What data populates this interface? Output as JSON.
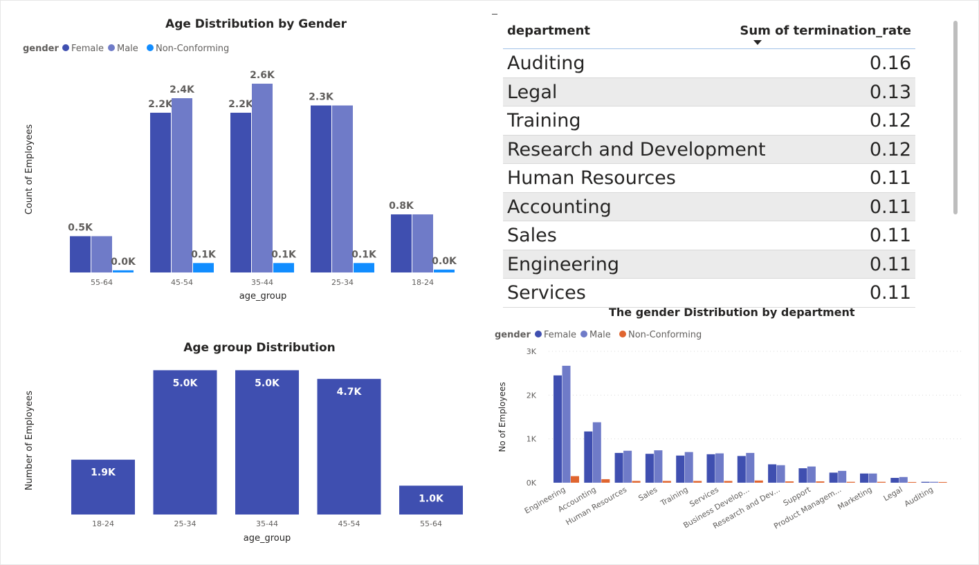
{
  "charts": [
    {
      "title": "Age Distribution by Gender",
      "legend_title": "gender",
      "xlabel": "age_group",
      "ylabel": "Count of Employees"
    },
    {
      "title": "Age group Distribution",
      "xlabel": "age_group",
      "ylabel": "Number of Employees"
    },
    {
      "title": "The gender Distribution by department",
      "legend_title": "gender",
      "xlabel": "",
      "ylabel": "No of Employees"
    }
  ],
  "table": {
    "col1_header": "department",
    "col2_header": "Sum of termination_rate",
    "rows": [
      {
        "department": "Auditing",
        "value": "0.16"
      },
      {
        "department": "Legal",
        "value": "0.13"
      },
      {
        "department": "Training",
        "value": "0.12"
      },
      {
        "department": "Research and Development",
        "value": "0.12"
      },
      {
        "department": "Human Resources",
        "value": "0.11"
      },
      {
        "department": "Accounting",
        "value": "0.11"
      },
      {
        "department": "Sales",
        "value": "0.11"
      },
      {
        "department": "Engineering",
        "value": "0.11"
      },
      {
        "department": "Services",
        "value": "0.11"
      }
    ]
  },
  "colors": {
    "female": "#3f4fb0",
    "male": "#6f7bc8",
    "nonconforming_1": "#118dff",
    "nonconforming_2": "#e0652f",
    "text": "#252423",
    "axis_text": "#605e5c"
  },
  "chart_data": [
    {
      "type": "bar",
      "title": "Age Distribution by Gender",
      "xlabel": "age_group",
      "ylabel": "Count of Employees",
      "legend_title": "gender",
      "legend_position": "top-left",
      "categories": [
        "55-64",
        "45-54",
        "35-44",
        "25-34",
        "18-24"
      ],
      "series": [
        {
          "name": "Female",
          "values": [
            500,
            2200,
            2200,
            2300,
            800
          ],
          "labels": [
            "0.5K",
            "2.2K",
            "2.2K",
            "2.3K",
            "0.8K"
          ]
        },
        {
          "name": "Male",
          "values": [
            500,
            2400,
            2600,
            2300,
            800
          ],
          "labels": [
            "",
            "2.4K",
            "2.6K",
            "",
            ""
          ]
        },
        {
          "name": "Non-Conforming",
          "values": [
            30,
            130,
            130,
            130,
            40
          ],
          "labels": [
            "0.0K",
            "0.1K",
            "0.1K",
            "0.1K",
            "0.0K"
          ]
        }
      ],
      "ylim": [
        0,
        2800
      ],
      "grid": false
    },
    {
      "type": "bar",
      "title": "Age group Distribution",
      "xlabel": "age_group",
      "ylabel": "Number of Employees",
      "categories": [
        "18-24",
        "25-34",
        "35-44",
        "45-54",
        "55-64"
      ],
      "values": [
        1900,
        5000,
        5000,
        4700,
        1000
      ],
      "labels": [
        "1.9K",
        "5.0K",
        "5.0K",
        "4.7K",
        "1.0K"
      ],
      "ylim": [
        0,
        5200
      ],
      "grid": false
    },
    {
      "type": "bar",
      "title": "The gender Distribution by department",
      "ylabel": "No of Employees",
      "legend_title": "gender",
      "legend_position": "top-left",
      "categories": [
        "Engineering",
        "Accounting",
        "Human Resources",
        "Sales",
        "Training",
        "Services",
        "Business Develop...",
        "Research and Dev...",
        "Support",
        "Product Managem...",
        "Marketing",
        "Legal",
        "Auditing"
      ],
      "series": [
        {
          "name": "Female",
          "values": [
            2450,
            1170,
            680,
            660,
            620,
            650,
            610,
            420,
            330,
            230,
            210,
            110,
            20
          ]
        },
        {
          "name": "Male",
          "values": [
            2670,
            1380,
            730,
            740,
            700,
            670,
            680,
            400,
            370,
            270,
            210,
            130,
            20
          ]
        },
        {
          "name": "Non-Conforming",
          "values": [
            150,
            80,
            40,
            40,
            40,
            40,
            50,
            30,
            30,
            20,
            20,
            10,
            5
          ]
        }
      ],
      "yticks": [
        "0K",
        "1K",
        "2K",
        "3K"
      ],
      "ylim": [
        0,
        3000
      ],
      "grid": true
    }
  ]
}
